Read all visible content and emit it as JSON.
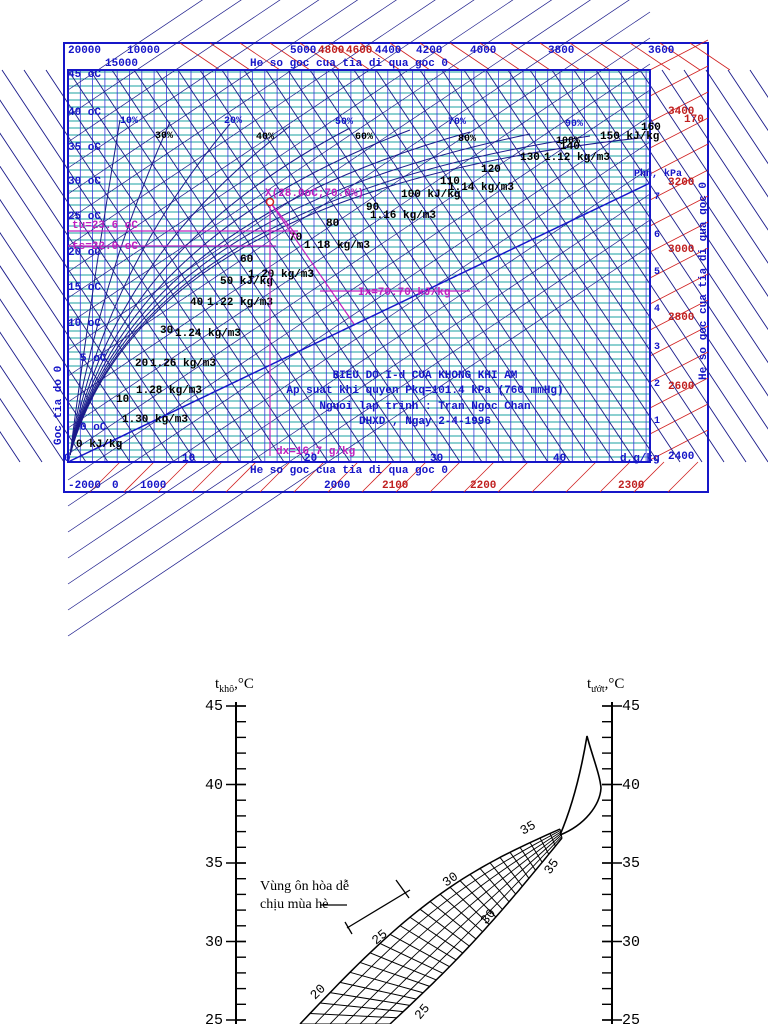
{
  "id_chart": {
    "top_scale_labels": [
      "20000",
      "10000",
      "15000",
      "5000",
      "4800",
      "4600",
      "4400",
      "4200",
      "4000",
      "3800",
      "3600"
    ],
    "top_caption": "He so goc cua tia di qua goc 0",
    "bottom_caption": "He so goc cua tia di qua goc 0",
    "bottom_scale_labels": [
      "-2000",
      "0",
      "1000",
      "2000",
      "2100",
      "2200",
      "2300"
    ],
    "right_scale_labels": [
      "3400",
      "3200",
      "3000",
      "2800",
      "2600",
      "2400"
    ],
    "right_caption": "He so goc cua tia di qua goc 0",
    "left_caption": "Goc tia do 0",
    "temperature_labels": [
      "45 oC",
      "40 oC",
      "35 oC",
      "30 oC",
      "25 oC",
      "20 oC",
      "15 oC",
      "10 oC",
      "5 oC",
      "0 oC"
    ],
    "x_axis_labels": [
      "0",
      "10",
      "20",
      "30",
      "40"
    ],
    "x_axis_unit": "d,g/kg",
    "humidity_labels": [
      "10%",
      "20%",
      "30%",
      "40%",
      "50%",
      "60%",
      "70%",
      "80%",
      "90%",
      "100%"
    ],
    "enthalpy_labels": [
      "0 kJ/kg",
      "10",
      "20",
      "30",
      "40",
      "50 kJ/kg",
      "60",
      "70",
      "80",
      "90",
      "100 kJ/kg",
      "110",
      "120",
      "130",
      "140",
      "150 kJ/kg",
      "160",
      "170"
    ],
    "density_labels": [
      "1.30 kg/m3",
      "1.28 kg/m3",
      "1.26 kg/m3",
      "1.24 kg/m3",
      "1.22 kg/m3",
      "1.20 kg/m3",
      "1.18 kg/m3",
      "1.16 kg/m3",
      "1.14 kg/m3",
      "1.12 kg/m3"
    ],
    "pressure_unit": "Phn, kPa",
    "pressure_labels": [
      "1",
      "2",
      "3",
      "4",
      "5",
      "6",
      "7"
    ],
    "point_label": "X(28.0oC;70.0%)",
    "tu_label": "tu=23.6 oC",
    "ts_label": "ts=22.0 oC",
    "ix_label": "Ix=70.70 kJ/kg",
    "dx_label": "dx=16.7 g/kg",
    "info_lines": [
      "BIEU DO I-d CUA KHONG KHI AM",
      "Ap suat khi quyen Pkq=101.4 kPa (760 mmHg)",
      "Nguoi lap trinh : Tran Ngoc Chan",
      "DHXD , Ngay 2-4-1996"
    ],
    "colors": {
      "frame": "#1616c8",
      "grid": "#1aa0a0",
      "accent": "#d02020",
      "marker": "#c020c0",
      "text": "#000000"
    }
  },
  "comfort_chart": {
    "left_axis_title": "t",
    "left_axis_sub": "khô",
    "left_axis_unit": ",°C",
    "right_axis_title": "t",
    "right_axis_sub": "ướt",
    "right_axis_unit": ",°C",
    "left_ticks": [
      "45",
      "40",
      "35",
      "30",
      "25"
    ],
    "right_ticks": [
      "45",
      "40",
      "35",
      "30",
      "25"
    ],
    "annotation_line1": "Vùng ôn hòa dễ",
    "annotation_line2": "chịu mùa hè",
    "contour_labels": [
      "35",
      "30",
      "25",
      "20",
      "35",
      "30",
      "25"
    ]
  }
}
